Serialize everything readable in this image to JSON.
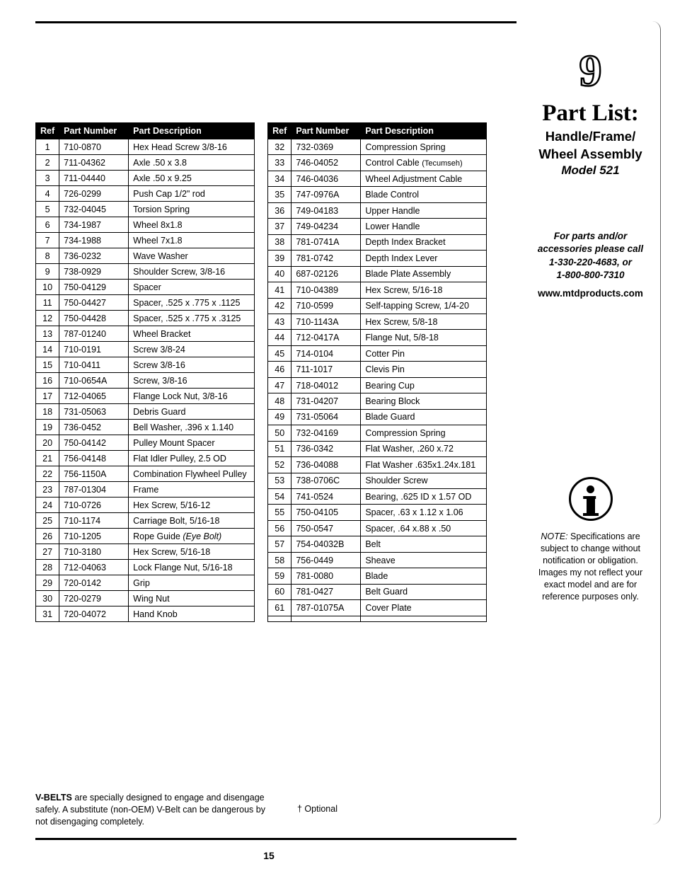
{
  "page_number": "15",
  "top_rule_color": "#000000",
  "table_header_bg": "#000000",
  "table_header_fg": "#ffffff",
  "columns": {
    "ref": "Ref",
    "pn": "Part Number",
    "pd": "Part Description"
  },
  "left_rows": [
    {
      "ref": "1",
      "pn": "710-0870",
      "pd": "Hex Head Screw 3/8-16"
    },
    {
      "ref": "2",
      "pn": "711-04362",
      "pd": "Axle .50 x 3.8"
    },
    {
      "ref": "3",
      "pn": "711-04440",
      "pd": "Axle .50 x 9.25"
    },
    {
      "ref": "4",
      "pn": "726-0299",
      "pd": "Push Cap 1/2\" rod"
    },
    {
      "ref": "5",
      "pn": "732-04045",
      "pd": "Torsion Spring"
    },
    {
      "ref": "6",
      "pn": "734-1987",
      "pd": "Wheel 8x1.8"
    },
    {
      "ref": "7",
      "pn": "734-1988",
      "pd": "Wheel 7x1.8"
    },
    {
      "ref": "8",
      "pn": "736-0232",
      "pd": "Wave Washer"
    },
    {
      "ref": "9",
      "pn": "738-0929",
      "pd": "Shoulder Screw, 3/8-16"
    },
    {
      "ref": "10",
      "pn": "750-04129",
      "pd": "Spacer"
    },
    {
      "ref": "11",
      "pn": "750-04427",
      "pd": "Spacer, .525 x .775 x .1125"
    },
    {
      "ref": "12",
      "pn": "750-04428",
      "pd": "Spacer, .525 x .775 x .3125"
    },
    {
      "ref": "13",
      "pn": "787-01240",
      "pd": "Wheel Bracket"
    },
    {
      "ref": "14",
      "pn": "710-0191",
      "pd": "Screw 3/8-24"
    },
    {
      "ref": "15",
      "pn": "710-0411",
      "pd": "Screw 3/8-16"
    },
    {
      "ref": "16",
      "pn": "710-0654A",
      "pd": "Screw, 3/8-16"
    },
    {
      "ref": "17",
      "pn": "712-04065",
      "pd": "Flange Lock Nut, 3/8-16"
    },
    {
      "ref": "18",
      "pn": "731-05063",
      "pd": "Debris Guard"
    },
    {
      "ref": "19",
      "pn": "736-0452",
      "pd": "Bell Washer, .396 x 1.140"
    },
    {
      "ref": "20",
      "pn": "750-04142",
      "pd": "Pulley Mount Spacer"
    },
    {
      "ref": "21",
      "pn": "756-04148",
      "pd": "Flat Idler Pulley, 2.5 OD"
    },
    {
      "ref": "22",
      "pn": "756-1150A",
      "pd": "Combination Flywheel Pulley"
    },
    {
      "ref": "23",
      "pn": "787-01304",
      "pd": "Frame"
    },
    {
      "ref": "24",
      "pn": "710-0726",
      "pd": "Hex Screw, 5/16-12"
    },
    {
      "ref": "25",
      "pn": "710-1174",
      "pd": "Carriage Bolt, 5/16-18"
    },
    {
      "ref": "26",
      "pn": "710-1205",
      "pd": "Rope Guide ",
      "pd_italic": "(Eye Bolt)"
    },
    {
      "ref": "27",
      "pn": "710-3180",
      "pd": "Hex Screw, 5/16-18"
    },
    {
      "ref": "28",
      "pn": "712-04063",
      "pd": "Lock Flange Nut, 5/16-18"
    },
    {
      "ref": "29",
      "pn": "720-0142",
      "pd": "Grip"
    },
    {
      "ref": "30",
      "pn": "720-0279",
      "pd": "Wing Nut"
    },
    {
      "ref": "31",
      "pn": "720-04072",
      "pd": "Hand Knob"
    }
  ],
  "right_rows": [
    {
      "ref": "32",
      "pn": "732-0369",
      "pd": "Compression Spring"
    },
    {
      "ref": "33",
      "pn": "746-04052",
      "pd": "Control Cable ",
      "pd_small": "(Tecumseh)"
    },
    {
      "ref": "34",
      "pn": "746-04036",
      "pd": "Wheel Adjustment Cable"
    },
    {
      "ref": "35",
      "pn": "747-0976A",
      "pd": "Blade Control"
    },
    {
      "ref": "36",
      "pn": "749-04183",
      "pd": "Upper Handle"
    },
    {
      "ref": "37",
      "pn": "749-04234",
      "pd": "Lower Handle"
    },
    {
      "ref": "38",
      "pn": "781-0741A",
      "pd": "Depth Index Bracket"
    },
    {
      "ref": "39",
      "pn": "781-0742",
      "pd": "Depth Index Lever"
    },
    {
      "ref": "40",
      "pn": "687-02126",
      "pd": "Blade Plate Assembly"
    },
    {
      "ref": "41",
      "pn": "710-04389",
      "pd": "Hex Screw, 5/16-18"
    },
    {
      "ref": "42",
      "pn": "710-0599",
      "pd": "Self-tapping Screw, 1/4-20"
    },
    {
      "ref": "43",
      "pn": "710-1143A",
      "pd": "Hex Screw, 5/8-18"
    },
    {
      "ref": "44",
      "pn": "712-0417A",
      "pd": "Flange Nut, 5/8-18"
    },
    {
      "ref": "45",
      "pn": "714-0104",
      "pd": "Cotter Pin"
    },
    {
      "ref": "46",
      "pn": "711-1017",
      "pd": "Clevis Pin"
    },
    {
      "ref": "47",
      "pn": "718-04012",
      "pd": "Bearing Cup"
    },
    {
      "ref": "48",
      "pn": "731-04207",
      "pd": "Bearing Block"
    },
    {
      "ref": "49",
      "pn": "731-05064",
      "pd": "Blade Guard"
    },
    {
      "ref": "50",
      "pn": "732-04169",
      "pd": "Compression Spring"
    },
    {
      "ref": "51",
      "pn": "736-0342",
      "pd": "Flat Washer, .260 x.72"
    },
    {
      "ref": "52",
      "pn": "736-04088",
      "pd": "Flat Washer .635x1.24x.181"
    },
    {
      "ref": "53",
      "pn": "738-0706C",
      "pd": "Shoulder Screw"
    },
    {
      "ref": "54",
      "pn": "741-0524",
      "pd": "Bearing, .625 ID x 1.57 OD"
    },
    {
      "ref": "55",
      "pn": "750-04105",
      "pd": "Spacer, .63 x 1.12 x 1.06"
    },
    {
      "ref": "56",
      "pn": "750-0547",
      "pd": "Spacer, .64 x.88 x .50"
    },
    {
      "ref": "57",
      "pn": "754-04032B",
      "pd": "Belt"
    },
    {
      "ref": "58",
      "pn": "756-0449",
      "pd": "Sheave"
    },
    {
      "ref": "59",
      "pn": "781-0080",
      "pd": "Blade"
    },
    {
      "ref": "60",
      "pn": "781-0427",
      "pd": "Belt Guard"
    },
    {
      "ref": "61",
      "pn": "787-01075A",
      "pd": "Cover Plate"
    },
    {
      "ref": "",
      "pn": "",
      "pd": ""
    }
  ],
  "sidebar": {
    "chapter": "9",
    "title": "Part List:",
    "subtitle_l1": "Handle/Frame/",
    "subtitle_l2": "Wheel Assembly",
    "model": "Model 521",
    "contact_lead_l1": "For parts and/or",
    "contact_lead_l2": "accessories please call",
    "phone1": "1-330-220-4683,  or",
    "phone2": "1-800-800-7310",
    "url": "www.mtdproducts.com",
    "note_lead": "NOTE:",
    "note_body": " Specifications are subject to change without notification or obligation. Images my not reflect your exact model and are for reference purposes only."
  },
  "footer": {
    "vb_bold": "V-BELTS",
    "vb_rest": " are specially designed to engage and disengage safely. A substitute (non-OEM) V-Belt can be dangerous by not disengaging completely.",
    "optional": "† Optional"
  }
}
